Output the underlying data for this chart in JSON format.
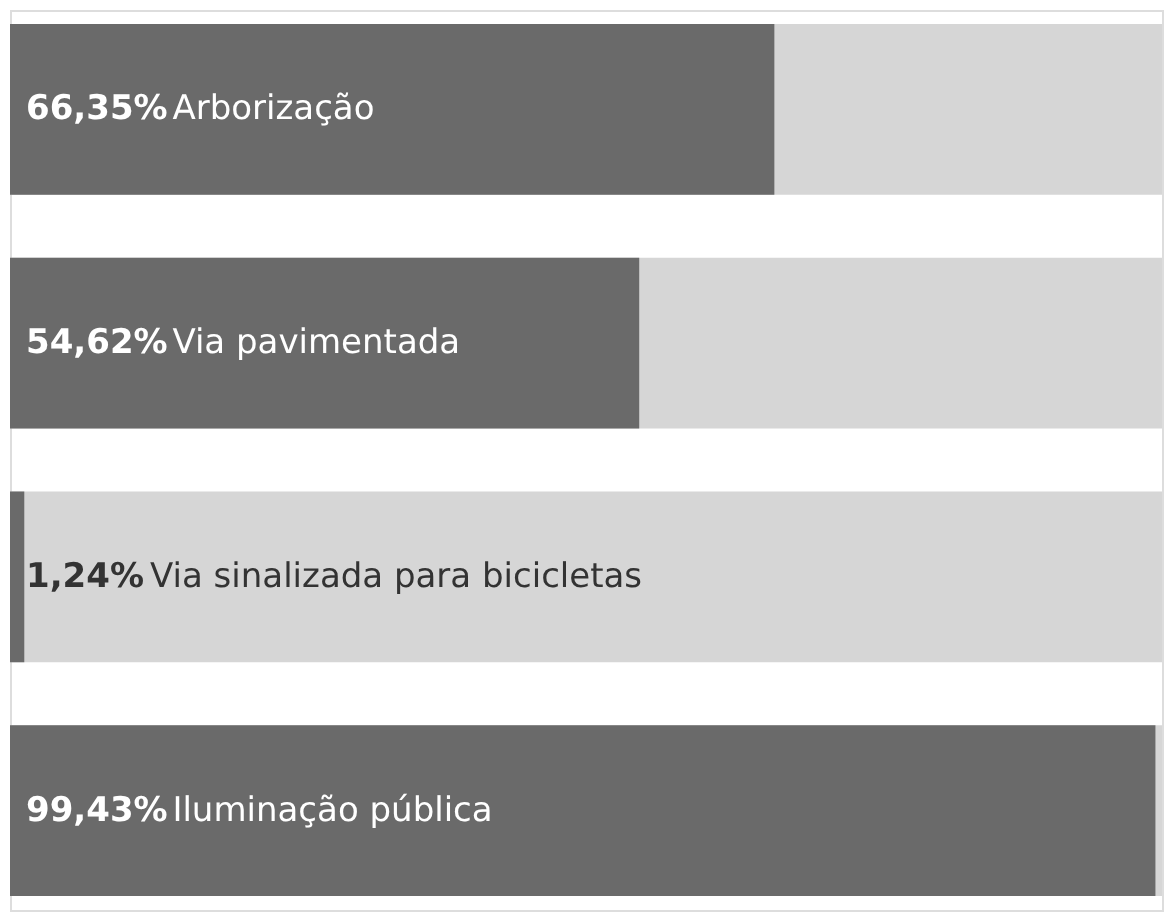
{
  "chart_data": {
    "type": "bar",
    "orientation": "horizontal",
    "categories": [
      "Arborização",
      "Via pavimentada",
      "Via sinalizada para bicicletas",
      "Iluminação pública"
    ],
    "series": [
      {
        "color": "#6a6a6a",
        "values": [
          66.35,
          54.62,
          1.24,
          99.43
        ],
        "value_labels": [
          "66,35%",
          "54,62%",
          "1,24%",
          "99,43%"
        ]
      }
    ],
    "bands": [
      {
        "axis": "x",
        "from": 0,
        "to": 100,
        "color": "#d6d6d6"
      }
    ],
    "xlim": [
      0,
      100
    ],
    "tick_labels": false
  }
}
